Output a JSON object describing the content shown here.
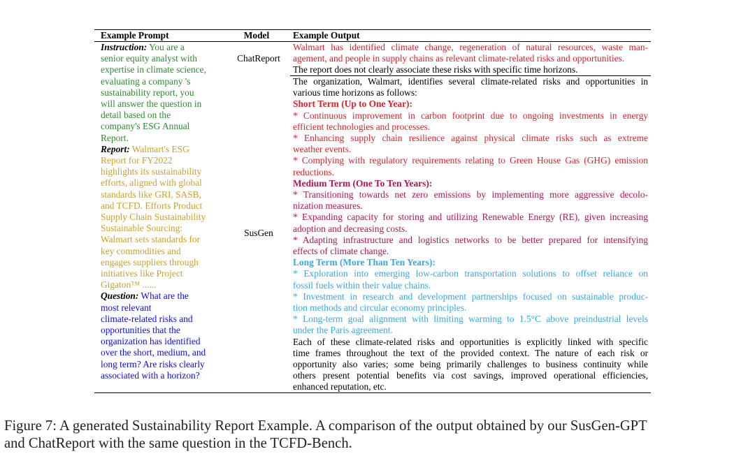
{
  "table": {
    "headers": {
      "prompt": "Example Prompt",
      "model": "Model",
      "output": "Example Output"
    },
    "prompt": {
      "instruction_label": "Instruction:",
      "instruction_lines": [
        " You are a",
        "senior equity analyst with",
        "expertise in climate science,",
        "evaluating a company 's",
        "sustainability report, you",
        "will answer the question in",
        "detail based on the",
        "company's ESG Annual",
        "Report."
      ],
      "report_label": "Report:",
      "report_lines": [
        " Walmart's ESG",
        "Report for FY2022",
        "highlights its sustainability",
        "efforts, aligned with global",
        "standards like GRI, SASB,",
        "and TCFD. Efforts Product",
        "Supply Chain Sustainability",
        "Sustainable Sourcing:",
        "Walmart sets standards for",
        "key commodities and",
        "engages suppliers through",
        "initiatives like Project",
        "Gigaton™ ......"
      ],
      "question_label": "Question:",
      "question_lines": [
        " What are the",
        "most relevant",
        "climate-related risks and",
        "opportunities that the",
        "organization has identified",
        "over the short, medium, and",
        "long term? Are risks clearly",
        "associated with a horizon?"
      ]
    },
    "models": {
      "chatreport": "ChatReport",
      "susgen": "SusGen"
    },
    "chatreport_output": {
      "red_lines": [
        "Walmart has identified climate change, regeneration of natural resources, waste man-",
        "agement, and people in supply chains as relevant climate-related risks and opportunities."
      ],
      "black_line": "The report does not clearly associate these risks with specific time horizons."
    },
    "susgen_output": {
      "intro_lines": [
        "The organization, Walmart, identifies several climate-related risks and opportunities in",
        "various time horizons as follows:"
      ],
      "short_term": {
        "heading": "Short Term (Up to One Year):",
        "lines": [
          "* Continuous improvement in carbon footprint due to ongoing investments in energy",
          "efficient technologies and processes.",
          "* Enhancing supply chain resilience against physical climate risks such as extreme",
          "weather events.",
          "* Complying with regulatory requirements relating to Green House Gas (GHG) emission",
          "reductions."
        ]
      },
      "medium_term": {
        "heading": "Medium Term (One To Ten Years):",
        "lines": [
          "* Transitioning towards net zero emissions by implementing more aggressive decolo-",
          "nization measures.",
          "* Expanding capacity for storing and utilizing Renewable Energy (RE), given increasing",
          "adoption and decreasing costs.",
          "* Adapting infrastructure and logistics networks to be better prepared for intensifying",
          "effects of climate change."
        ]
      },
      "long_term": {
        "heading": "Long Term (More Than Ten Years):",
        "lines": [
          "* Exploration into emerging low-carbon transportation solutions to offset reliance on",
          "fossil fuels within their value chains.",
          "* Investment in research and development partnerships focused on sustainable produc-",
          "tion methods and circular economy principles.",
          "* Long-term goal alignment with limiting warming to 1.5°C above preindustrial levels",
          "under the Paris agreement."
        ]
      },
      "conclusion_lines": [
        "Each of these climate-related risks and opportunities is explicitly linked with specific",
        "time frames throughout the text of the provided context.  The nature of each risk or",
        "opportunity also varies; some being primarily challenges to business continuity while",
        "others present potential benefits via cost savings, improved operational efficiencies,",
        "enhanced reputation, etc."
      ]
    }
  },
  "caption": {
    "line1": "Figure 7:  A generated Sustainability Report Example. A comparison of the output obtained by our SusGen-GPT",
    "line2": "and ChatReport with the same question in the TCFD-Bench."
  }
}
